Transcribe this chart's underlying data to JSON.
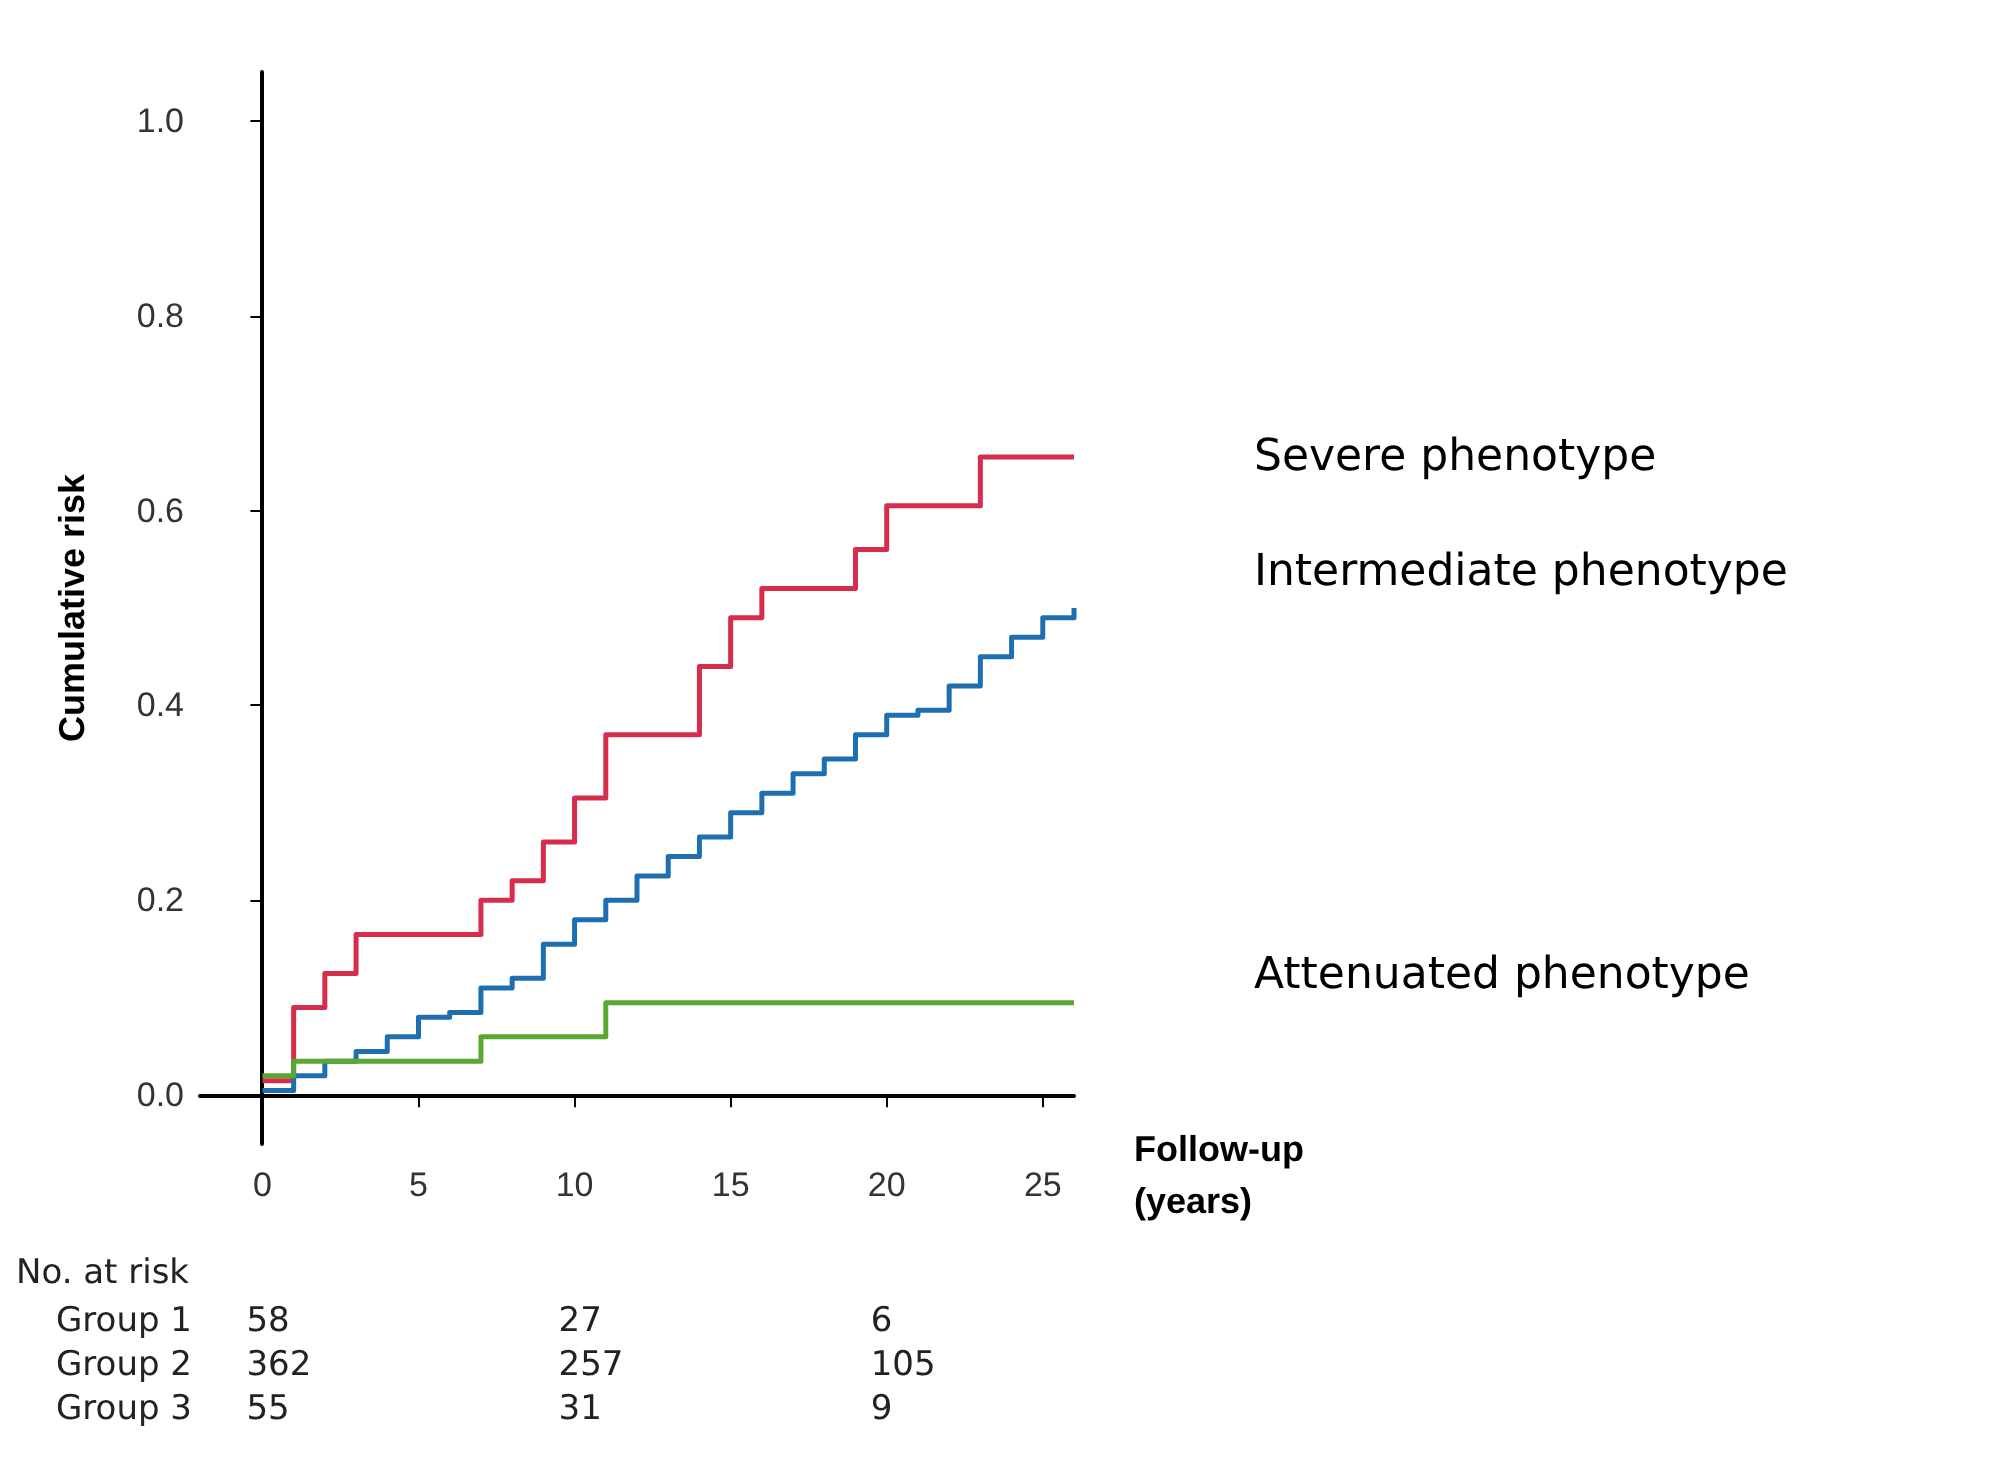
{
  "chart_data": {
    "type": "step",
    "xlabel": "Follow-up (years)",
    "ylabel": "Cumulative risk",
    "xlim": [
      -2,
      26
    ],
    "xticks": [
      0,
      5,
      10,
      15,
      20,
      25
    ],
    "ylim": [
      -0.05,
      1.05
    ],
    "yticks": [
      {
        "value": 0,
        "label": "0.0"
      },
      0.2,
      0.4,
      0.6,
      0.8,
      {
        "value": 1,
        "label": "1.0"
      }
    ],
    "series": [
      {
        "name": "Severe phenotype",
        "color": "#d62d4d",
        "x": [
          0,
          1,
          2,
          3,
          7,
          8,
          9,
          10,
          11,
          14,
          15,
          16,
          19,
          20,
          23,
          26
        ],
        "values": [
          0.015,
          0.09,
          0.125,
          0.165,
          0.2,
          0.22,
          0.26,
          0.305,
          0.37,
          0.44,
          0.49,
          0.52,
          0.56,
          0.605,
          0.655,
          0.655
        ]
      },
      {
        "name": "Intermediate phenotype",
        "color": "#1f6fb0",
        "x": [
          0,
          1,
          2,
          3,
          4,
          5,
          6,
          7,
          8,
          9,
          10,
          11,
          12,
          13,
          14,
          15,
          16,
          17,
          18,
          19,
          20,
          21,
          22,
          23,
          24,
          25,
          26
        ],
        "values": [
          0.005,
          0.02,
          0.035,
          0.045,
          0.06,
          0.08,
          0.085,
          0.11,
          0.12,
          0.155,
          0.18,
          0.2,
          0.225,
          0.245,
          0.265,
          0.29,
          0.31,
          0.33,
          0.345,
          0.37,
          0.39,
          0.395,
          0.42,
          0.45,
          0.47,
          0.49,
          0.5
        ]
      },
      {
        "name": "Attenuated phenotype",
        "color": "#5aa832",
        "x": [
          0,
          1,
          7,
          11,
          26
        ],
        "values": [
          0.02,
          0.035,
          0.06,
          0.095,
          0.095
        ]
      }
    ],
    "annotations": [
      "No. at risk",
      "Group 1",
      "58",
      "27",
      "6",
      "Group 2",
      "362",
      "257",
      "105",
      "Group 3",
      "55",
      "31",
      "9"
    ],
    "grid": false,
    "legend": false,
    "line_style": "solid",
    "marker": "none"
  }
}
